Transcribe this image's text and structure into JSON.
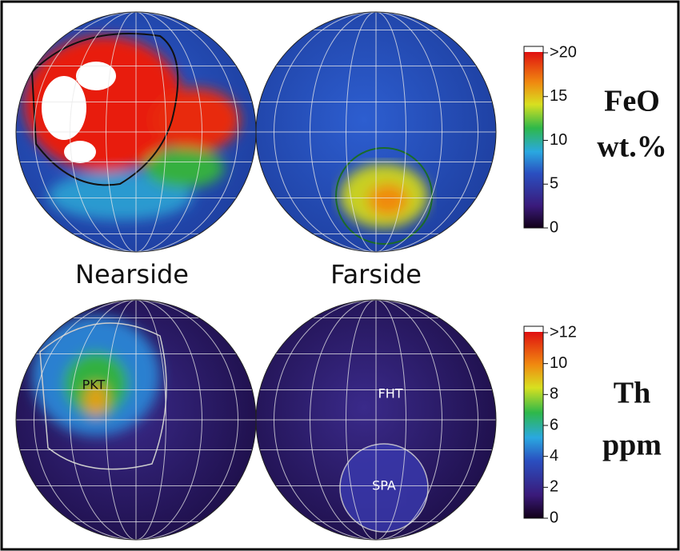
{
  "labels": {
    "nearside": "Nearside",
    "farside": "Farside"
  },
  "regions": {
    "pkt": "PKT",
    "fht": "FHT",
    "spa": "SPA"
  },
  "colorbars": [
    {
      "title": [
        "FeO",
        "wt.%"
      ],
      "ticks": [
        {
          "value": 20,
          "label": ">20"
        },
        15,
        10,
        5,
        0
      ]
    },
    {
      "title": [
        "Th",
        "ppm"
      ],
      "ticks": [
        {
          "value": 12,
          "label": ">12"
        },
        10,
        8,
        6,
        4,
        2,
        0
      ]
    }
  ]
}
